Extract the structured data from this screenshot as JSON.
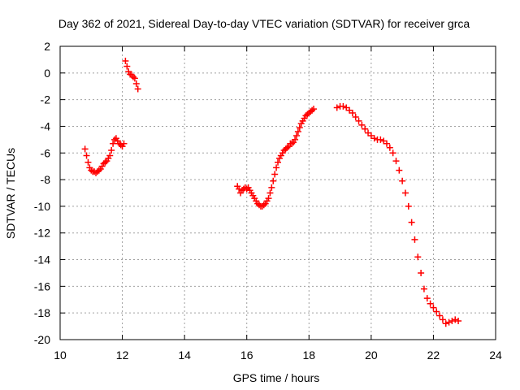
{
  "chart_data": {
    "type": "scatter",
    "title": "Day 362 of 2021, Sidereal Day-to-day VTEC variation (SDTVAR) for receiver grca",
    "xlabel": "GPS time / hours",
    "ylabel": "SDTVAR / TECUs",
    "xlim": [
      10,
      24
    ],
    "ylim": [
      -20,
      2
    ],
    "xticks": [
      "10",
      "12",
      "14",
      "16",
      "18",
      "20",
      "22",
      "24"
    ],
    "yticks": [
      "2",
      "0",
      "-2",
      "-4",
      "-6",
      "-8",
      "-10",
      "-12",
      "-14",
      "-16",
      "-18",
      "-20"
    ],
    "grid": true,
    "marker": "+",
    "series_color": "#ff0000",
    "series": [
      {
        "x": [
          10.8,
          10.85,
          10.9,
          10.95,
          11.0,
          11.05,
          11.1,
          11.15,
          11.2,
          11.25,
          11.3,
          11.35,
          11.4,
          11.45,
          11.5,
          11.55,
          11.6,
          11.65,
          11.7,
          11.75,
          11.8,
          11.85,
          11.9,
          11.95,
          12.0,
          12.05
        ],
        "y": [
          -5.7,
          -6.2,
          -6.7,
          -7.1,
          -7.3,
          -7.4,
          -7.4,
          -7.5,
          -7.4,
          -7.3,
          -7.2,
          -7.0,
          -6.8,
          -6.7,
          -6.6,
          -6.4,
          -6.2,
          -5.8,
          -5.3,
          -5.0,
          -4.9,
          -5.1,
          -5.3,
          -5.4,
          -5.5,
          -5.3
        ]
      },
      {
        "x": [
          12.1,
          12.15,
          12.2,
          12.25,
          12.3,
          12.35,
          12.4,
          12.45,
          12.5
        ],
        "y": [
          0.9,
          0.5,
          0.1,
          -0.1,
          -0.15,
          -0.3,
          -0.4,
          -0.8,
          -1.2
        ]
      },
      {
        "x": [
          15.7,
          15.75,
          15.8,
          15.85,
          15.9,
          15.95,
          16.0,
          16.05,
          16.1,
          16.15,
          16.2,
          16.25,
          16.3,
          16.35,
          16.4,
          16.45,
          16.5,
          16.55,
          16.6,
          16.65,
          16.7,
          16.75,
          16.8,
          16.85,
          16.9,
          16.95,
          17.0,
          17.05,
          17.1,
          17.15,
          17.2,
          17.25,
          17.3,
          17.35,
          17.4,
          17.45,
          17.5,
          17.55,
          17.6,
          17.65,
          17.7,
          17.75,
          17.8,
          17.85,
          17.9,
          17.95,
          18.0,
          18.05,
          18.1,
          18.15
        ],
        "y": [
          -8.5,
          -8.7,
          -9.0,
          -8.8,
          -8.7,
          -8.6,
          -8.7,
          -8.6,
          -8.8,
          -9.0,
          -9.2,
          -9.4,
          -9.6,
          -9.8,
          -9.9,
          -10.0,
          -10.0,
          -9.9,
          -9.8,
          -9.6,
          -9.4,
          -9.0,
          -8.6,
          -8.1,
          -7.6,
          -7.1,
          -6.7,
          -6.4,
          -6.2,
          -6.0,
          -5.8,
          -5.7,
          -5.6,
          -5.5,
          -5.3,
          -5.3,
          -5.2,
          -5.0,
          -4.7,
          -4.4,
          -4.1,
          -3.8,
          -3.6,
          -3.4,
          -3.2,
          -3.1,
          -3.0,
          -2.9,
          -2.8,
          -2.7
        ]
      },
      {
        "x": [
          18.9,
          19.0,
          19.1,
          19.2,
          19.3,
          19.4,
          19.5,
          19.6,
          19.7,
          19.8,
          19.9,
          20.0,
          20.1,
          20.2,
          20.3,
          20.4,
          20.5,
          20.6,
          20.7,
          20.8,
          20.9,
          21.0,
          21.1,
          21.2,
          21.3,
          21.4,
          21.5,
          21.6,
          21.7,
          21.8,
          21.9,
          22.0,
          22.1,
          22.2,
          22.3,
          22.4,
          22.5,
          22.6,
          22.7,
          22.8
        ],
        "y": [
          -2.6,
          -2.5,
          -2.5,
          -2.6,
          -2.8,
          -3.0,
          -3.3,
          -3.6,
          -3.9,
          -4.2,
          -4.5,
          -4.7,
          -4.9,
          -5.0,
          -5.0,
          -5.1,
          -5.3,
          -5.6,
          -6.0,
          -6.6,
          -7.3,
          -8.1,
          -9.0,
          -10.0,
          -11.2,
          -12.5,
          -13.8,
          -15.0,
          -16.2,
          -16.9,
          -17.3,
          -17.6,
          -17.9,
          -18.2,
          -18.5,
          -18.8,
          -18.7,
          -18.6,
          -18.5,
          -18.6
        ]
      }
    ]
  }
}
